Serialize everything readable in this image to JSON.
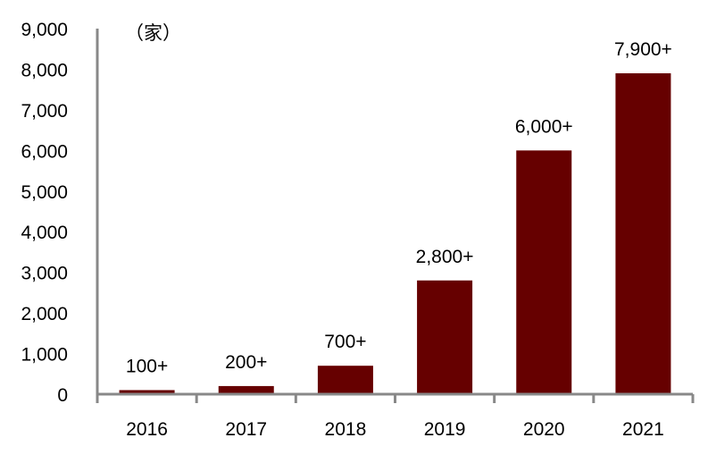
{
  "chart_data": {
    "type": "bar",
    "title": "",
    "unit_label": "（家）",
    "xlabel": "",
    "ylabel": "",
    "categories": [
      "2016",
      "2017",
      "2018",
      "2019",
      "2020",
      "2021"
    ],
    "values": [
      100,
      200,
      700,
      2800,
      6000,
      7900
    ],
    "data_labels": [
      "100+",
      "200+",
      "700+",
      "2,800+",
      "6,000+",
      "7,900+"
    ],
    "ylim": [
      0,
      9000
    ],
    "yticks": [
      0,
      1000,
      2000,
      3000,
      4000,
      5000,
      6000,
      7000,
      8000,
      9000
    ],
    "ytick_labels": [
      "0",
      "1,000",
      "2,000",
      "3,000",
      "4,000",
      "5,000",
      "6,000",
      "7,000",
      "8,000",
      "9,000"
    ],
    "grid": false,
    "legend": "none",
    "bar_color": "#660000",
    "axis_color": "#888888"
  }
}
